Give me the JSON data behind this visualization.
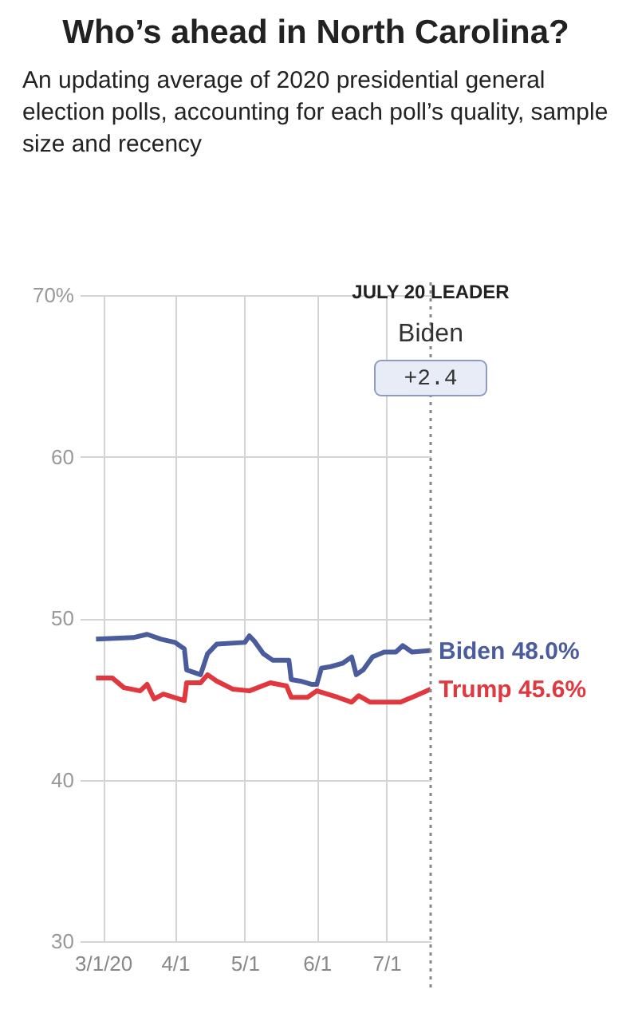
{
  "chart_data": {
    "type": "line",
    "title": "Who’s ahead in North Carolina?",
    "subtitle": "An updating average of 2020 presidential general election polls, accounting for each poll’s quality, sample size and recency",
    "xlim": [
      "2020-02-20",
      "2020-07-20"
    ],
    "ylim": [
      30,
      70
    ],
    "xticks": [
      {
        "value": "2020-03-01",
        "label": "3/1/20"
      },
      {
        "value": "2020-04-01",
        "label": "4/1"
      },
      {
        "value": "2020-05-01",
        "label": "5/1"
      },
      {
        "value": "2020-06-01",
        "label": "6/1"
      },
      {
        "value": "2020-07-01",
        "label": "7/1"
      }
    ],
    "yticks": [
      30,
      40,
      50,
      60,
      {
        "value": 70,
        "label": "70%"
      }
    ],
    "grid": true,
    "series": [
      {
        "color": "#4a5c9c",
        "x": [
          "2020-02-27",
          "2020-03-14",
          "2020-03-20",
          "2020-03-26",
          "2020-04-01",
          "2020-04-05",
          "2020-04-06",
          "2020-04-12",
          "2020-04-15",
          "2020-04-19",
          "2020-05-01",
          "2020-05-03",
          "2020-05-05",
          "2020-05-09",
          "2020-05-13",
          "2020-05-20",
          "2020-05-21",
          "2020-05-25",
          "2020-05-30",
          "2020-06-01",
          "2020-06-03",
          "2020-06-07",
          "2020-06-12",
          "2020-06-16",
          "2020-06-18",
          "2020-06-21",
          "2020-06-25",
          "2020-06-30",
          "2020-07-05",
          "2020-07-08",
          "2020-07-12",
          "2020-07-20"
        ],
        "values": [
          48.7,
          48.8,
          49.0,
          48.7,
          48.5,
          48.1,
          46.8,
          46.5,
          47.8,
          48.4,
          48.5,
          48.9,
          48.6,
          47.8,
          47.4,
          47.4,
          46.2,
          46.1,
          45.9,
          45.9,
          46.9,
          47.0,
          47.2,
          47.6,
          46.5,
          46.8,
          47.6,
          47.9,
          47.9,
          48.3,
          47.9,
          48.0
        ]
      },
      {
        "color": "#e0383e",
        "x": [
          "2020-02-27",
          "2020-03-05",
          "2020-03-10",
          "2020-03-17",
          "2020-03-20",
          "2020-03-23",
          "2020-03-27",
          "2020-04-05",
          "2020-04-06",
          "2020-04-12",
          "2020-04-15",
          "2020-04-19",
          "2020-04-26",
          "2020-05-03",
          "2020-05-12",
          "2020-05-19",
          "2020-05-21",
          "2020-05-28",
          "2020-06-01",
          "2020-06-10",
          "2020-06-16",
          "2020-06-19",
          "2020-06-24",
          "2020-07-07",
          "2020-07-12",
          "2020-07-20"
        ],
        "values": [
          46.3,
          46.3,
          45.7,
          45.5,
          45.9,
          45.0,
          45.3,
          44.9,
          46.0,
          46.0,
          46.5,
          46.1,
          45.6,
          45.5,
          46.0,
          45.8,
          45.1,
          45.1,
          45.5,
          45.1,
          44.8,
          45.2,
          44.8,
          44.8,
          45.1,
          45.6
        ]
      }
    ],
    "ref_lines": [
      {
        "axis": "x",
        "value": "2020-07-20",
        "label": "JULY 20 LEADER",
        "color": "#888888",
        "line_style": "dotted"
      }
    ],
    "annotations": [
      "Biden",
      "+2.4",
      {
        "text": "Biden 48.0%",
        "x": "2020-07-20",
        "y": 48.0
      },
      {
        "text": "Trump 45.6%",
        "x": "2020-07-20",
        "y": 45.6
      }
    ]
  }
}
